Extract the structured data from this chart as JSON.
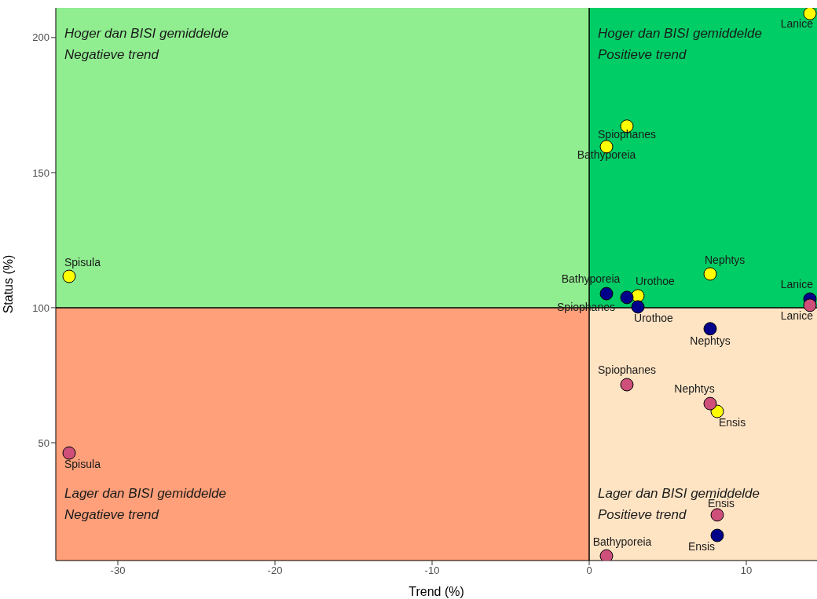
{
  "chart_data": {
    "type": "scatter",
    "xlabel": "Trend (%)",
    "ylabel": "Status (%)",
    "xlim": [
      -33.95,
      14.5
    ],
    "ylim": [
      6.4,
      211
    ],
    "xticks": [
      -30,
      -20,
      -10,
      0,
      10
    ],
    "yticks": [
      50,
      100,
      150,
      200
    ],
    "grid": false,
    "legend": false,
    "marker": "circle",
    "ref_lines": [
      {
        "axis": "x",
        "value": 0,
        "color": "#000000"
      },
      {
        "axis": "y",
        "value": 100,
        "color": "#000000"
      }
    ],
    "series": [
      {
        "color": "#ffff00",
        "x": [
          14.05,
          2.4,
          1.1,
          -33.1,
          7.7,
          3.1,
          8.15
        ],
        "values": [
          208.9,
          167.2,
          159.6,
          111.6,
          112.5,
          104.4,
          61.6
        ]
      },
      {
        "color": "#00008b",
        "x": [
          1.1,
          2.4,
          3.1,
          14.05,
          7.7,
          8.15
        ],
        "values": [
          105.2,
          103.8,
          100.3,
          103.2,
          92.2,
          15.7
        ]
      },
      {
        "color": "#cd4f7a",
        "x": [
          -33.1,
          2.4,
          7.7,
          14.05,
          8.15,
          1.1
        ],
        "values": [
          46.2,
          71.5,
          64.5,
          100.9,
          23.3,
          8.1
        ]
      }
    ],
    "bands": [
      {
        "axis": "x",
        "from": -33.95,
        "to": 0,
        "color": "#90ee90",
        "label": "Hoger dan BISI gemiddelde\nNegatieve trend"
      },
      {
        "axis": "x",
        "from": 0,
        "to": 14.5,
        "color": "#00cd66",
        "label": "Hoger dan BISI gemiddelde\nPositieve trend"
      },
      {
        "axis": "x",
        "from": -33.95,
        "to": 0,
        "color": "#ffa07a",
        "label": "Lager dan BISI gemiddelde\nNegatieve trend"
      },
      {
        "axis": "x",
        "from": 0,
        "to": 14.5,
        "color": "#ffe4c4",
        "label": "Lager dan BISI gemiddelde\nPositieve trend"
      }
    ],
    "annotations": [
      {
        "text": "Lanice",
        "x": 14.05,
        "y": 208.9
      },
      {
        "text": "Spiophanes",
        "x": 2.4,
        "y": 167.2
      },
      {
        "text": "Bathyporeia",
        "x": 1.1,
        "y": 159.6
      },
      {
        "text": "Spisula",
        "x": -33.1,
        "y": 111.6
      },
      {
        "text": "Nephtys",
        "x": 7.7,
        "y": 112.5
      },
      {
        "text": "Urothoe",
        "x": 3.1,
        "y": 104.4
      },
      {
        "text": "Ensis",
        "x": 8.15,
        "y": 61.6
      },
      {
        "text": "Bathyporeia",
        "x": 1.1,
        "y": 105.2
      },
      {
        "text": "Spiophanes",
        "x": 2.4,
        "y": 103.8
      },
      {
        "text": "Urothoe",
        "x": 3.1,
        "y": 100.3
      },
      {
        "text": "Lanice",
        "x": 14.05,
        "y": 103.2
      },
      {
        "text": "Nephtys",
        "x": 7.7,
        "y": 92.2
      },
      {
        "text": "Ensis",
        "x": 8.15,
        "y": 15.7
      },
      {
        "text": "Spisula",
        "x": -33.1,
        "y": 46.2
      },
      {
        "text": "Spiophanes",
        "x": 2.4,
        "y": 71.5
      },
      {
        "text": "Nephtys",
        "x": 7.7,
        "y": 64.5
      },
      {
        "text": "Lanice",
        "x": 14.05,
        "y": 100.9
      },
      {
        "text": "Ensis",
        "x": 8.15,
        "y": 23.3
      },
      {
        "text": "Bathyporeia",
        "x": 1.1,
        "y": 8.1
      }
    ]
  }
}
